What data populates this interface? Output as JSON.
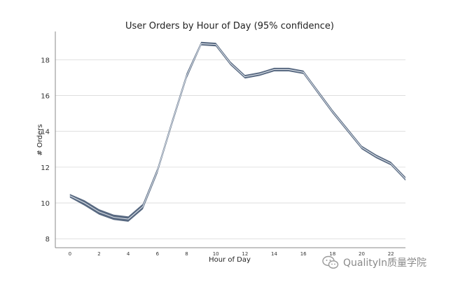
{
  "chart_data": {
    "type": "line",
    "title": "User Orders by Hour of Day (95% confidence)",
    "xlabel": "Hour of Day",
    "ylabel": "# Orders",
    "xlim": [
      -1,
      23
    ],
    "ylim": [
      7.5,
      19.5
    ],
    "xticks": [
      0,
      2,
      4,
      6,
      8,
      10,
      12,
      14,
      16,
      18,
      20,
      22
    ],
    "xtick_labels": [
      "0",
      "2",
      "4",
      "6",
      "8",
      "10",
      "12",
      "14",
      "16",
      "18",
      "20",
      "22"
    ],
    "yticks": [
      8,
      10,
      12,
      14,
      16,
      18
    ],
    "ytick_labels": [
      "8",
      "10",
      "12",
      "14",
      "16",
      "18"
    ],
    "grid": "horizontal",
    "colors": {
      "line": "#3b4f6b",
      "band": "#3b4f6b",
      "grid": "#d9d9d9",
      "axis": "#888888"
    },
    "series": [
      {
        "x": [
          0,
          1,
          2,
          3,
          4,
          5,
          6,
          7,
          8,
          9,
          10,
          11,
          12,
          13,
          14,
          15,
          16,
          17,
          18,
          19,
          20,
          21,
          22,
          23
        ],
        "y": [
          10.4,
          10.0,
          9.5,
          9.2,
          9.1,
          9.8,
          11.8,
          14.5,
          17.1,
          18.9,
          18.85,
          17.8,
          17.05,
          17.2,
          17.45,
          17.45,
          17.3,
          16.2,
          15.1,
          14.1,
          13.1,
          12.6,
          12.2,
          11.35
        ],
        "lower": [
          10.3,
          9.85,
          9.35,
          9.05,
          8.95,
          9.65,
          11.65,
          14.35,
          16.95,
          18.8,
          18.75,
          17.7,
          16.95,
          17.1,
          17.35,
          17.35,
          17.2,
          16.1,
          15.0,
          14.0,
          13.0,
          12.5,
          12.1,
          11.25
        ],
        "upper": [
          10.5,
          10.15,
          9.65,
          9.35,
          9.25,
          9.95,
          11.95,
          14.65,
          17.25,
          19.0,
          18.95,
          17.9,
          17.15,
          17.3,
          17.55,
          17.55,
          17.4,
          16.3,
          15.2,
          14.2,
          13.2,
          12.7,
          12.3,
          11.45
        ]
      }
    ]
  },
  "watermark": {
    "text": "QualityIn质量学院",
    "icon": "wechat-icon"
  }
}
